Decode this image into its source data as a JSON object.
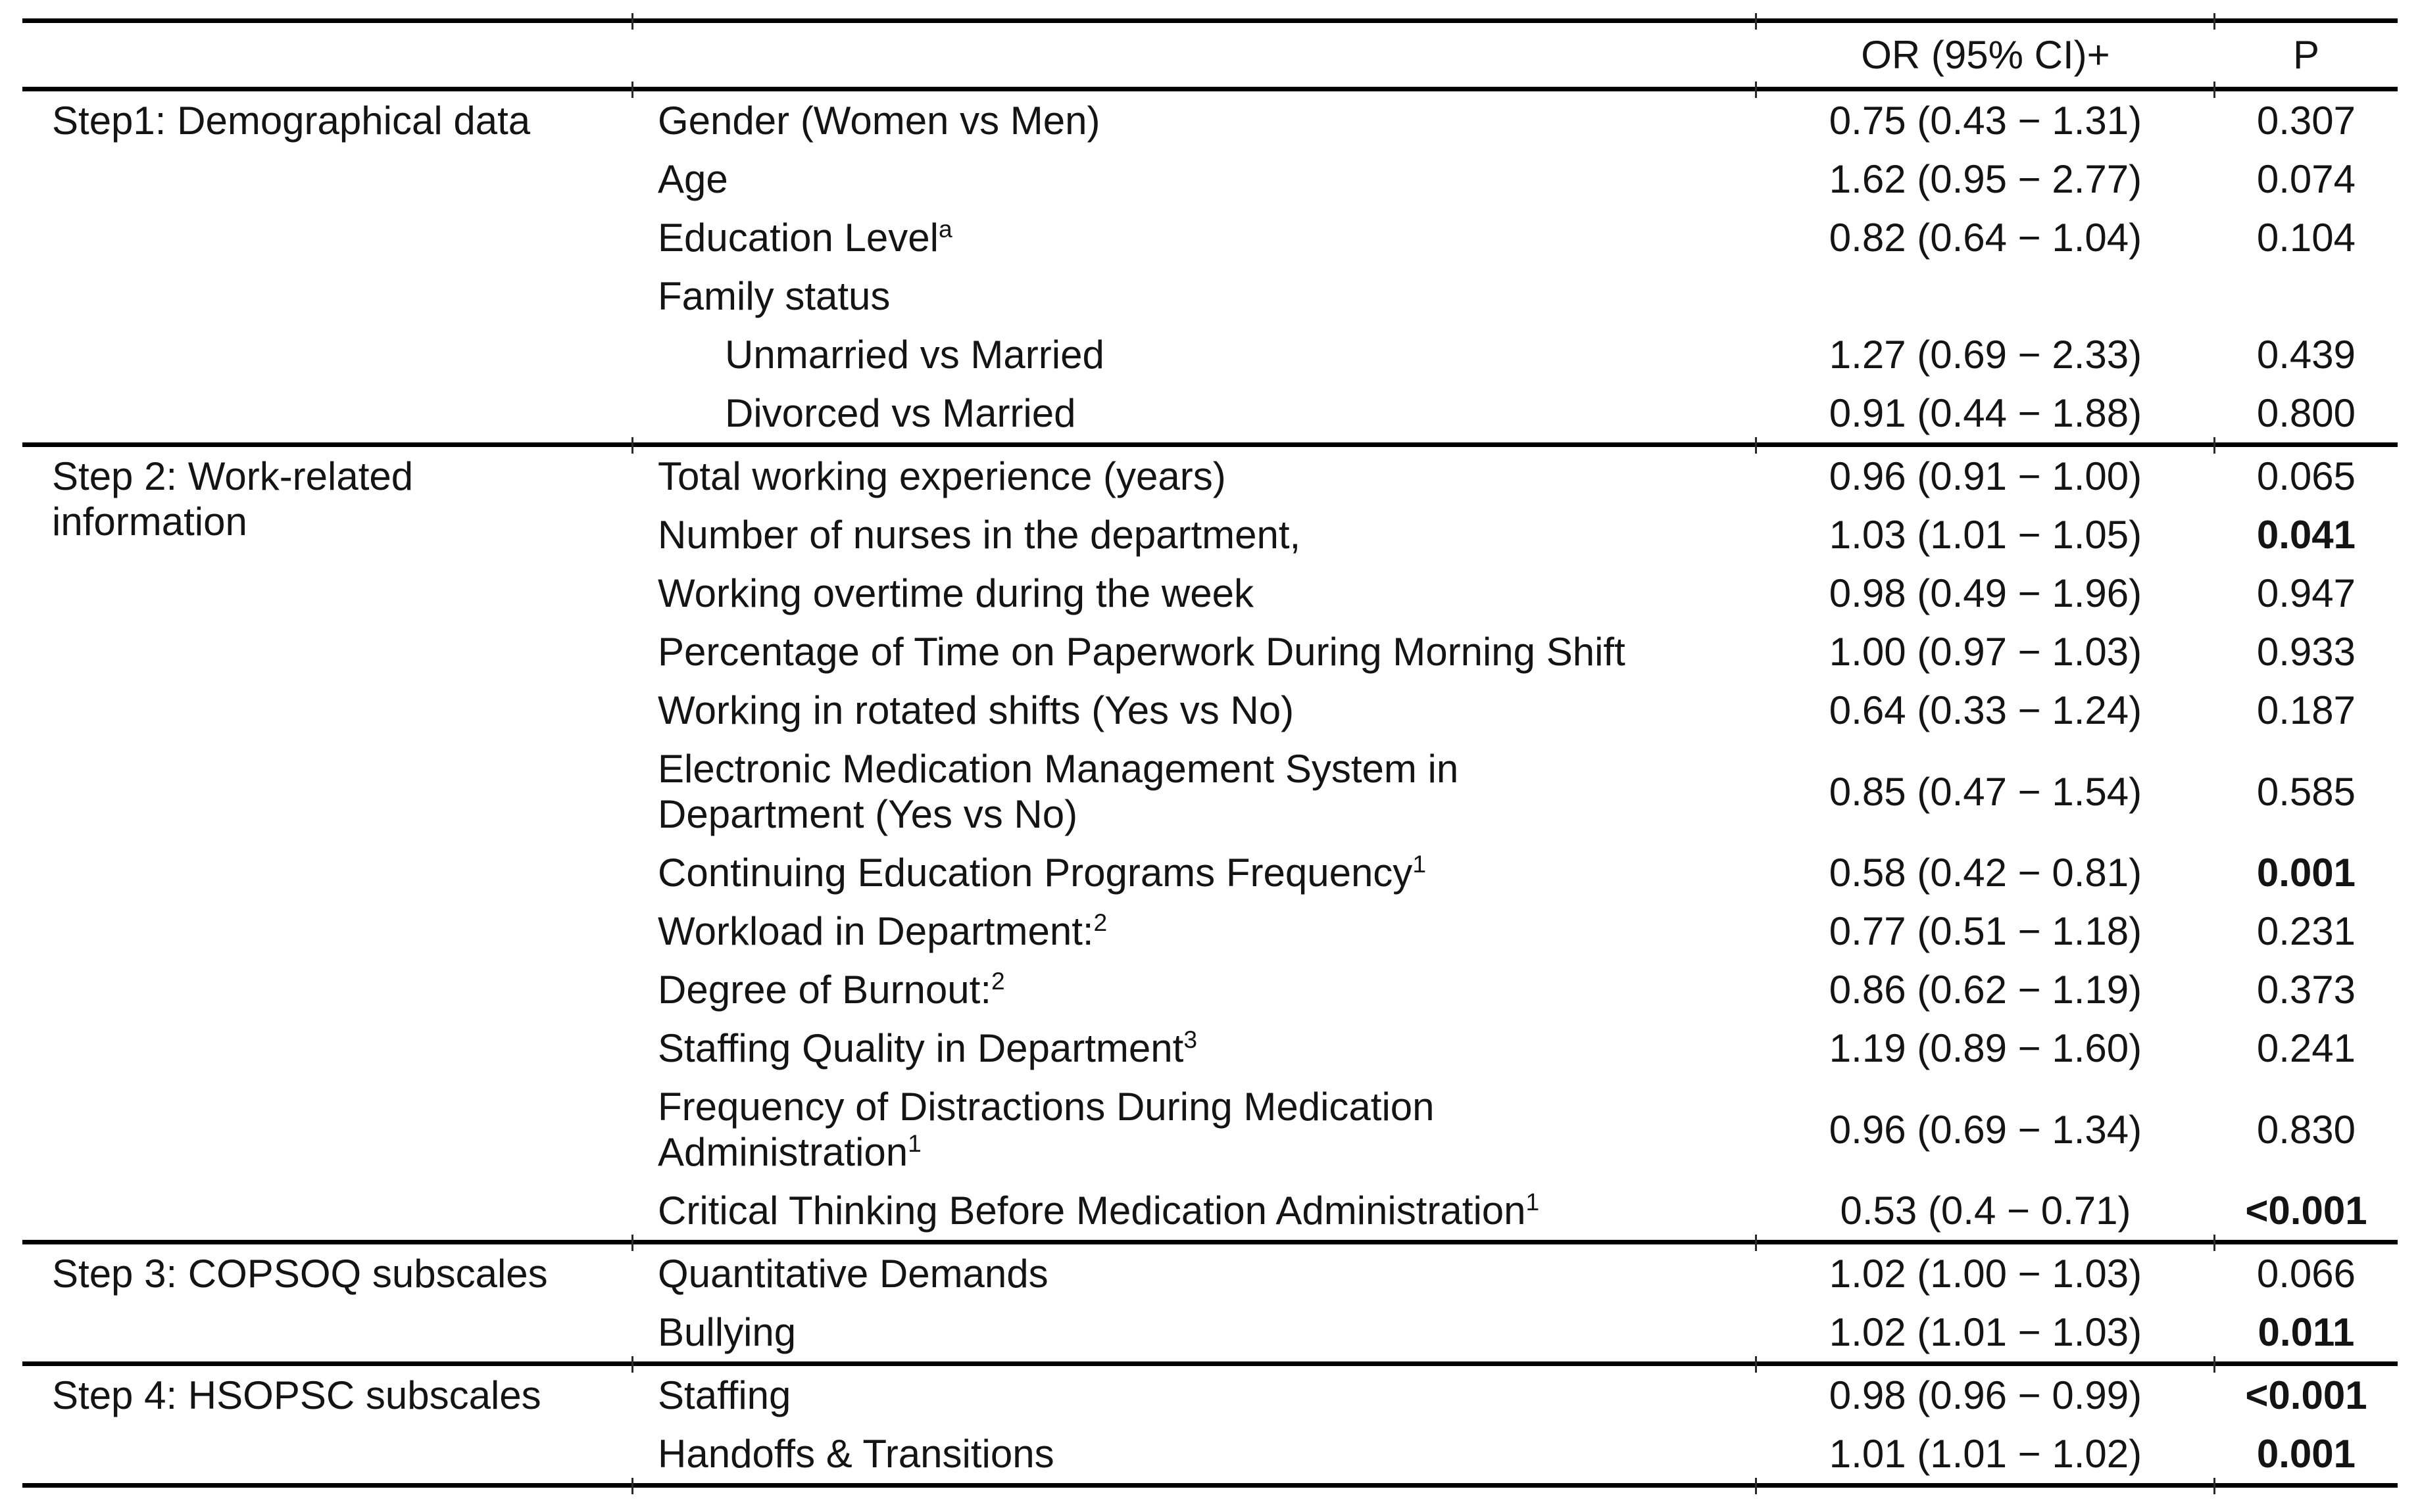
{
  "page": {
    "background": "#ffffff",
    "text_color": "#141414",
    "rule_color": "#000000"
  },
  "header": {
    "or_label": "OR (95% CI)+",
    "p_label": "P"
  },
  "sections": [
    {
      "step_label": "Step1: Demographical data",
      "rows": [
        {
          "variable": "Gender (Women vs Men)",
          "sup": "",
          "indent": false,
          "or_ci": "0.75 (0.43 − 1.31)",
          "p": "0.307",
          "p_bold": false
        },
        {
          "variable": "Age",
          "sup": "",
          "indent": false,
          "or_ci": "1.62 (0.95 − 2.77)",
          "p": "0.074",
          "p_bold": false
        },
        {
          "variable": "Education Level",
          "sup": "a",
          "indent": false,
          "or_ci": "0.82 (0.64 − 1.04)",
          "p": "0.104",
          "p_bold": false
        },
        {
          "variable": "Family status",
          "sup": "",
          "indent": false,
          "or_ci": "",
          "p": "",
          "p_bold": false
        },
        {
          "variable": "Unmarried vs Married",
          "sup": "",
          "indent": true,
          "or_ci": "1.27 (0.69 − 2.33)",
          "p": "0.439",
          "p_bold": false
        },
        {
          "variable": "Divorced vs Married",
          "sup": "",
          "indent": true,
          "or_ci": "0.91 (0.44 − 1.88)",
          "p": "0.800",
          "p_bold": false
        }
      ]
    },
    {
      "step_label": "Step 2: Work-related\ninformation",
      "rows": [
        {
          "variable": "Total working experience (years)",
          "sup": "",
          "indent": false,
          "or_ci": "0.96 (0.91 − 1.00)",
          "p": "0.065",
          "p_bold": false
        },
        {
          "variable": "Number of nurses in the department,",
          "sup": "",
          "indent": false,
          "or_ci": "1.03 (1.01 − 1.05)",
          "p": "0.041",
          "p_bold": true
        },
        {
          "variable": "Working overtime during the week",
          "sup": "",
          "indent": false,
          "or_ci": "0.98 (0.49 − 1.96)",
          "p": "0.947",
          "p_bold": false
        },
        {
          "variable": "Percentage of Time on Paperwork During Morning Shift",
          "sup": "",
          "indent": false,
          "or_ci": "1.00 (0.97 − 1.03)",
          "p": "0.933",
          "p_bold": false
        },
        {
          "variable": "Working in rotated shifts (Yes vs No)",
          "sup": "",
          "indent": false,
          "or_ci": "0.64 (0.33 − 1.24)",
          "p": "0.187",
          "p_bold": false
        },
        {
          "variable": "Electronic Medication Management System in\nDepartment (Yes vs No)",
          "sup": "",
          "indent": false,
          "or_ci": "0.85 (0.47 − 1.54)",
          "p": "0.585",
          "p_bold": false
        },
        {
          "variable": "Continuing Education Programs Frequency",
          "sup": "1",
          "indent": false,
          "or_ci": "0.58 (0.42 − 0.81)",
          "p": "0.001",
          "p_bold": true
        },
        {
          "variable": "Workload in Department:",
          "sup": "2",
          "indent": false,
          "or_ci": "0.77 (0.51 − 1.18)",
          "p": "0.231",
          "p_bold": false
        },
        {
          "variable": "Degree of Burnout:",
          "sup": "2",
          "indent": false,
          "or_ci": "0.86 (0.62 − 1.19)",
          "p": "0.373",
          "p_bold": false
        },
        {
          "variable": "Staffing Quality in Department",
          "sup": "3",
          "indent": false,
          "or_ci": "1.19 (0.89 − 1.60)",
          "p": "0.241",
          "p_bold": false
        },
        {
          "variable": "Frequency of Distractions During Medication\nAdministration",
          "sup": "1",
          "indent": false,
          "or_ci": "0.96 (0.69 − 1.34)",
          "p": "0.830",
          "p_bold": false
        },
        {
          "variable": "Critical Thinking Before Medication Administration",
          "sup": "1",
          "indent": false,
          "or_ci": "0.53 (0.4 − 0.71)",
          "p": "<0.001",
          "p_bold": true
        }
      ]
    },
    {
      "step_label": "Step 3: COPSOQ subscales",
      "rows": [
        {
          "variable": "Quantitative Demands",
          "sup": "",
          "indent": false,
          "or_ci": "1.02 (1.00 − 1.03)",
          "p": "0.066",
          "p_bold": false
        },
        {
          "variable": "Bullying",
          "sup": "",
          "indent": false,
          "or_ci": "1.02 (1.01 − 1.03)",
          "p": "0.011",
          "p_bold": true
        }
      ]
    },
    {
      "step_label": "Step 4: HSOPSC subscales",
      "rows": [
        {
          "variable": "Staffing",
          "sup": "",
          "indent": false,
          "or_ci": "0.98 (0.96 − 0.99)",
          "p": "<0.001",
          "p_bold": true
        },
        {
          "variable": "Handoffs & Transitions",
          "sup": "",
          "indent": false,
          "or_ci": "1.01 (1.01 − 1.02)",
          "p": "0.001",
          "p_bold": true
        }
      ]
    }
  ]
}
